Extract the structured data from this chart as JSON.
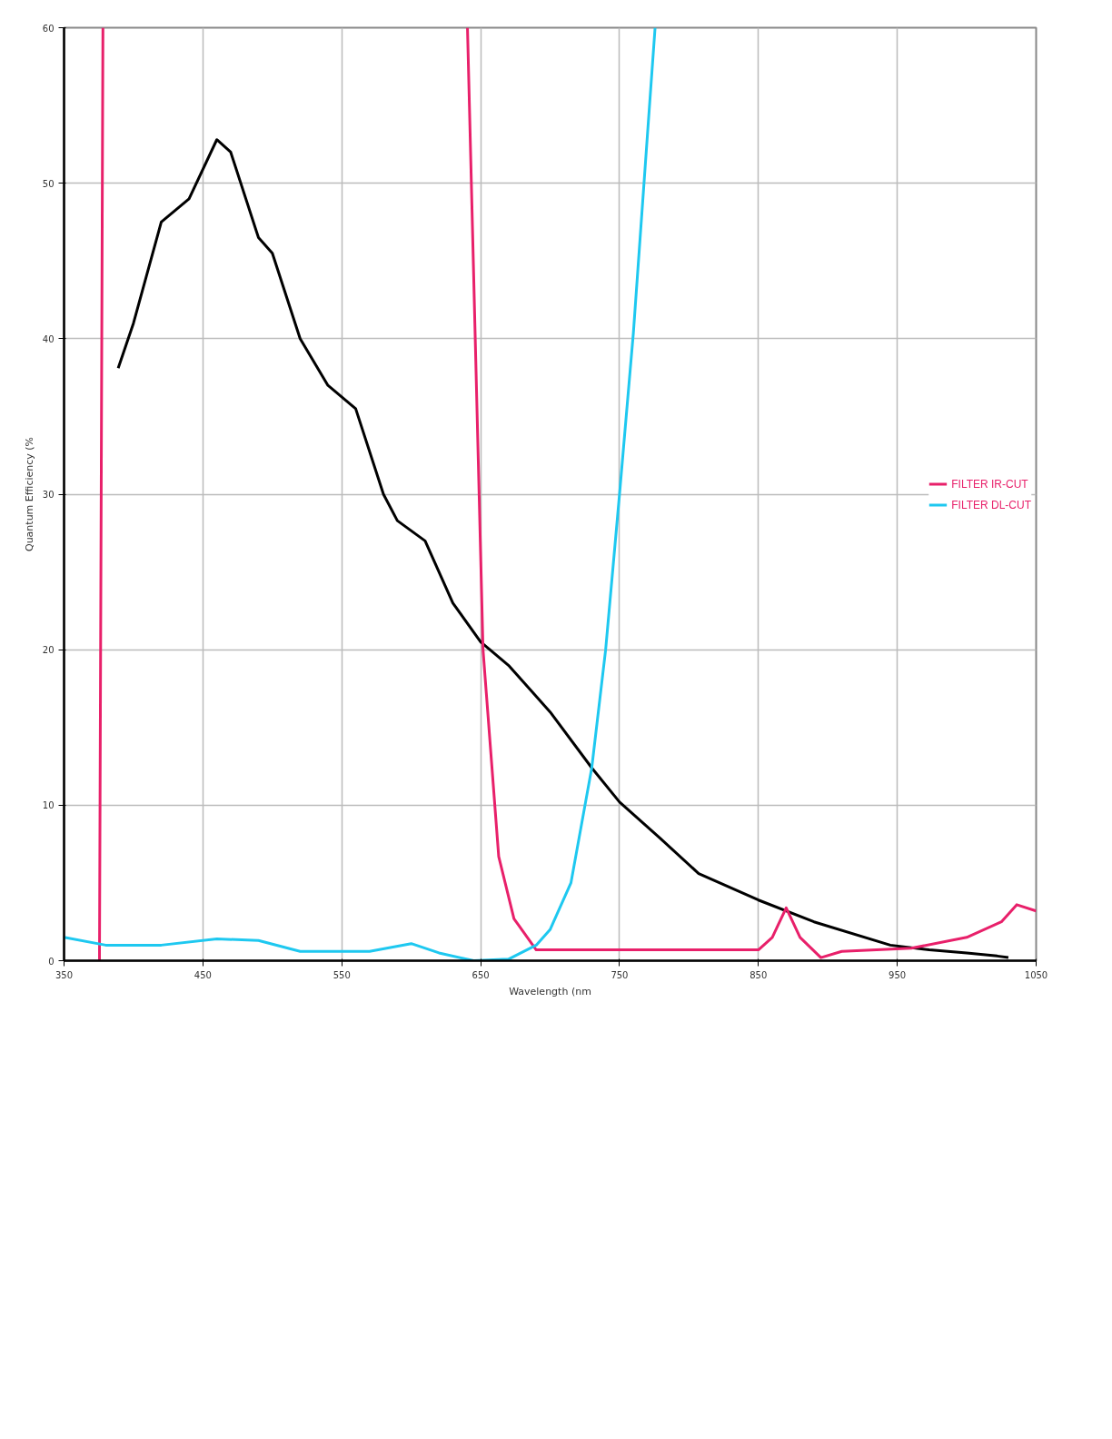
{
  "chart_data": {
    "type": "line",
    "xlabel": "Wavelength (nm",
    "ylabel": "Quantum Efficiency (%",
    "xlim": [
      350,
      1050
    ],
    "ylim": [
      0,
      60
    ],
    "xticks": [
      350,
      450,
      550,
      650,
      750,
      850,
      950,
      1050
    ],
    "yticks": [
      0,
      10,
      20,
      30,
      40,
      50,
      60
    ],
    "grid": true,
    "legend": "right",
    "marker": "none",
    "line_style": "solid",
    "series": [
      {
        "color": "#000000",
        "x": [
          389,
          400,
          420,
          440,
          460,
          470,
          490,
          500,
          520,
          540,
          560,
          580,
          590,
          610,
          630,
          650,
          658,
          670,
          700,
          730,
          750,
          779,
          807,
          850,
          890,
          945,
          973,
          1000,
          1022,
          1030
        ],
        "values": [
          38.1,
          41,
          47.5,
          49,
          52.8,
          52,
          46.5,
          45.5,
          40,
          37,
          35.5,
          30,
          28.3,
          27,
          23,
          20.5,
          19.9,
          19,
          16,
          12.4,
          10.2,
          7.9,
          5.6,
          3.9,
          2.5,
          1.0,
          0.7,
          0.5,
          0.3,
          0.2
        ]
      },
      {
        "name": "FILTER IR-CUT",
        "color": "#e8206a",
        "x": [
          375.5,
          378,
          500,
          640.5,
          651.7,
          663,
          674,
          690,
          750,
          850,
          860,
          870,
          880,
          895,
          910,
          960,
          1000,
          1025,
          1036,
          1050
        ],
        "values": [
          0,
          60,
          null,
          60,
          20,
          6.7,
          2.7,
          0.7,
          0.7,
          0.7,
          1.5,
          3.4,
          1.5,
          0.2,
          0.6,
          0.8,
          1.5,
          2.5,
          3.6,
          3.2
        ]
      },
      {
        "name": "FILTER DL-CUT",
        "color": "#1ec8f0",
        "x": [
          350,
          380,
          420,
          460,
          490,
          520,
          570,
          600,
          620,
          645,
          670,
          690,
          700,
          715,
          730,
          740,
          750,
          760,
          770,
          775.6
        ],
        "values": [
          1.5,
          1.0,
          1.0,
          1.4,
          1.3,
          0.6,
          0.6,
          1.1,
          0.5,
          0.0,
          0.1,
          1.0,
          2.0,
          5,
          12.4,
          20,
          30,
          40.4,
          53,
          60
        ]
      }
    ]
  }
}
